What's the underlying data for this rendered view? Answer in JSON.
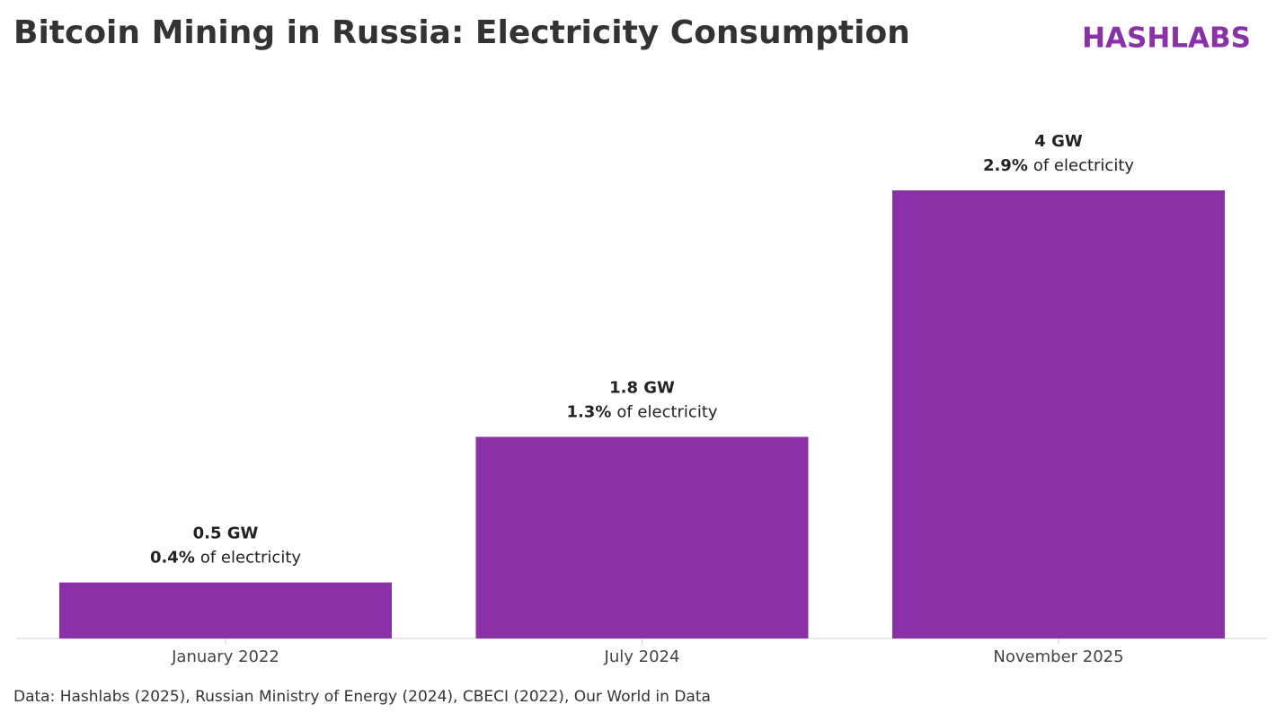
{
  "chart_data": {
    "type": "bar",
    "title": "Bitcoin Mining in Russia: Electricity Consumption",
    "brand": "HASHLABS",
    "source": "Data: Hashlabs (2025), Russian Ministry of Energy (2024), CBECI (2022), Our World in Data",
    "categories": [
      "January 2022",
      "July 2024",
      "November 2025"
    ],
    "values": [
      0.5,
      1.8,
      4
    ],
    "value_labels": [
      "0.5 GW",
      "1.8 GW",
      "4 GW"
    ],
    "share_values": [
      0.4,
      1.3,
      2.9
    ],
    "share_value_labels": [
      "0.4%",
      "1.3%",
      "2.9%"
    ],
    "share_text": "of electricity",
    "color": "#8b31a8",
    "ylim": [
      0,
      4
    ]
  }
}
